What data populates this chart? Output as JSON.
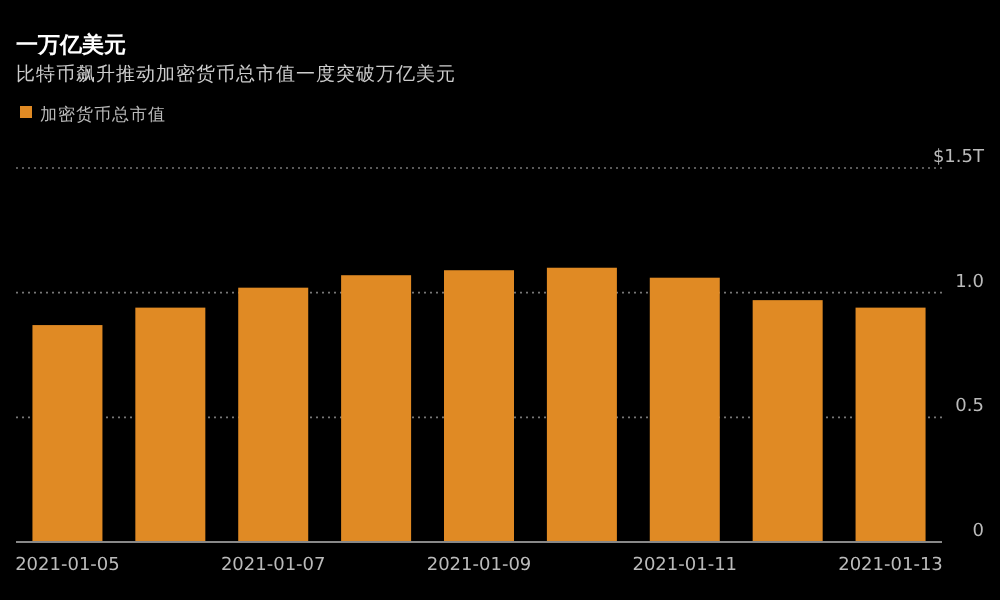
{
  "chart_data": {
    "type": "bar",
    "title": "一万亿美元",
    "subtitle": "比特币飙升推动加密货币总市值一度突破万亿美元",
    "x": [
      "2021-01-05",
      "2021-01-06",
      "2021-01-07",
      "2021-01-08",
      "2021-01-09",
      "2021-01-10",
      "2021-01-11",
      "2021-01-12",
      "2021-01-13"
    ],
    "series": [
      {
        "name": "加密货币总市值",
        "color": "#e08a24",
        "values": [
          0.87,
          0.94,
          1.02,
          1.07,
          1.09,
          1.1,
          1.06,
          0.97,
          0.94
        ]
      }
    ],
    "xlim": [
      "2021-01-04T12:00",
      "2021-01-13T12:00"
    ],
    "xticks": [
      "2021-01-05",
      "2021-01-07",
      "2021-01-09",
      "2021-01-11",
      "2021-01-13"
    ],
    "ylim": [
      0,
      1.5
    ],
    "yticks": [
      0,
      0.5,
      {
        "value": 1,
        "label": "1.0"
      },
      {
        "value": 1.5,
        "label": "$1.5T"
      }
    ],
    "grid": "y",
    "legend": "top left"
  }
}
